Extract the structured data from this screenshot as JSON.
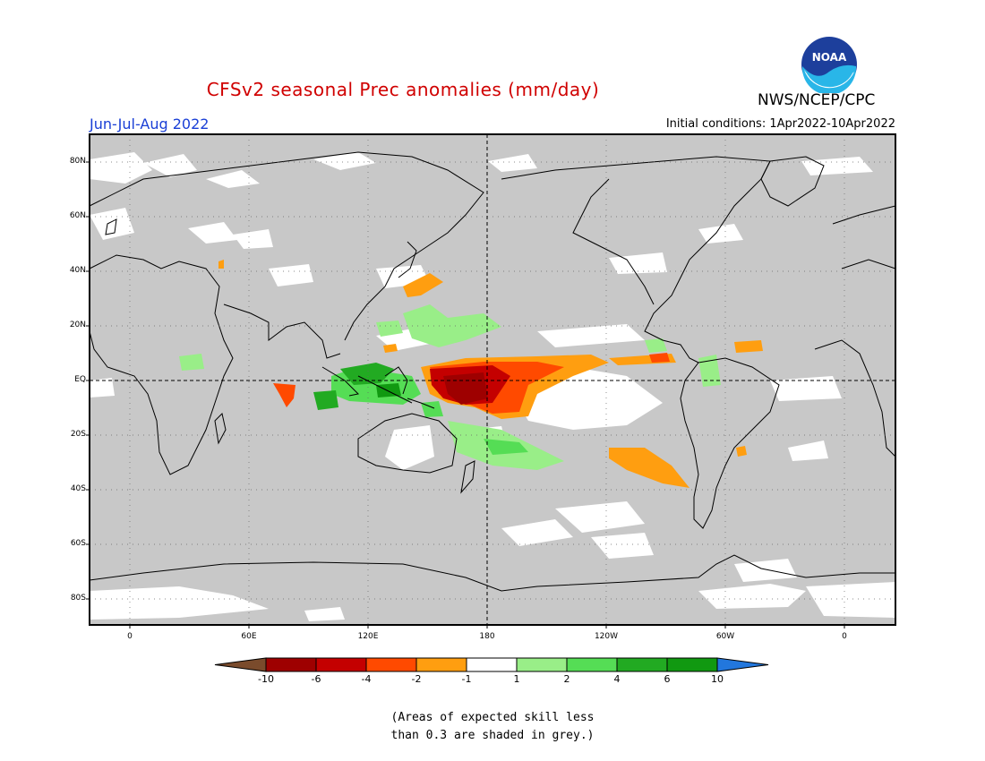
{
  "header": {
    "title": "CFSv2 seasonal Prec anomalies (mm/day)",
    "agency": "NWS/NCEP/CPC",
    "season": "Jun-Jul-Aug 2022",
    "initial_conditions": "Initial conditions: 1Apr2022-10Apr2022",
    "logo_text": "NOAA"
  },
  "map": {
    "lat_labels": [
      "80N",
      "60N",
      "40N",
      "20N",
      "EQ",
      "20S",
      "40S",
      "60S",
      "80S"
    ],
    "lon_labels": [
      "0",
      "60E",
      "120E",
      "180",
      "120W",
      "60W",
      "0"
    ],
    "background_color": "#c8c8c8",
    "skill_color": "#ffffff"
  },
  "colorbar": {
    "ticks": [
      "-10",
      "-6",
      "-4",
      "-2",
      "-1",
      "1",
      "2",
      "4",
      "6",
      "10"
    ],
    "colors": [
      "#7a4b2c",
      "#9e0000",
      "#c40000",
      "#ff4a00",
      "#ff9e10",
      "#ffffff",
      "#99ee88",
      "#55dd55",
      "#22aa22",
      "#119911",
      "#2277dd"
    ]
  },
  "footnote": {
    "line1": "(Areas of expected skill less",
    "line2": "than 0.3 are shaded in grey.)"
  }
}
